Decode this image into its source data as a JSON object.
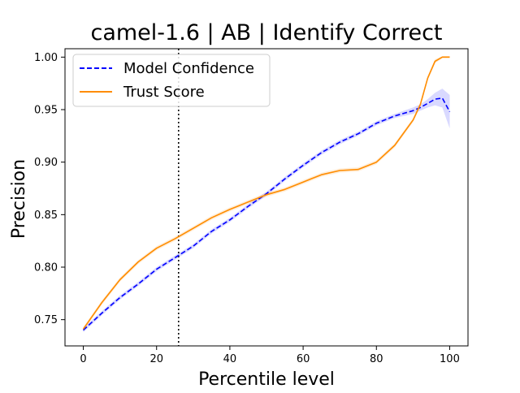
{
  "chart_data": {
    "type": "line",
    "title": "camel-1.6 | AB | Identify Correct",
    "xlabel": "Percentile level",
    "ylabel": "Precision",
    "xlim": [
      -5,
      105
    ],
    "ylim": [
      0.725,
      1.008
    ],
    "xticks": [
      0,
      20,
      40,
      60,
      80,
      100
    ],
    "xtick_labels": [
      "0",
      "20",
      "40",
      "60",
      "80",
      "100"
    ],
    "yticks": [
      0.75,
      0.8,
      0.85,
      0.9,
      0.95,
      1.0
    ],
    "ytick_labels": [
      "0.75",
      "0.80",
      "0.85",
      "0.90",
      "0.95",
      "1.00"
    ],
    "grid": false,
    "legend_position": "top-left",
    "vline": {
      "x": 26,
      "style": "dotted",
      "color": "#000000"
    },
    "series": [
      {
        "name": "Model Confidence",
        "color": "#0000ff",
        "style": "dashed",
        "band_color": "#0000ff",
        "x": [
          0,
          5,
          10,
          15,
          20,
          25,
          30,
          35,
          40,
          45,
          50,
          55,
          60,
          65,
          70,
          75,
          80,
          85,
          90,
          92,
          94,
          96,
          98,
          100
        ],
        "y": [
          0.74,
          0.756,
          0.771,
          0.784,
          0.798,
          0.809,
          0.82,
          0.834,
          0.845,
          0.858,
          0.87,
          0.884,
          0.897,
          0.909,
          0.919,
          0.927,
          0.937,
          0.944,
          0.949,
          0.952,
          0.956,
          0.96,
          0.961,
          0.948
        ],
        "band": [
          0.002,
          0.002,
          0.002,
          0.002,
          0.002,
          0.002,
          0.002,
          0.002,
          0.002,
          0.002,
          0.002,
          0.002,
          0.002,
          0.002,
          0.002,
          0.002,
          0.002,
          0.002,
          0.003,
          0.003,
          0.004,
          0.006,
          0.009,
          0.016
        ]
      },
      {
        "name": "Trust Score",
        "color": "#ff8c00",
        "style": "solid",
        "band_color": "#ff8c00",
        "x": [
          0,
          5,
          10,
          15,
          20,
          25,
          30,
          35,
          40,
          45,
          50,
          55,
          60,
          65,
          70,
          75,
          80,
          85,
          90,
          92,
          94,
          96,
          98,
          100
        ],
        "y": [
          0.741,
          0.766,
          0.788,
          0.805,
          0.818,
          0.827,
          0.837,
          0.847,
          0.855,
          0.862,
          0.869,
          0.874,
          0.881,
          0.888,
          0.892,
          0.893,
          0.9,
          0.916,
          0.94,
          0.955,
          0.98,
          0.996,
          1.0,
          1.0
        ],
        "band": [
          0.002,
          0.002,
          0.002,
          0.002,
          0.002,
          0.002,
          0.002,
          0.002,
          0.002,
          0.002,
          0.002,
          0.002,
          0.002,
          0.002,
          0.002,
          0.002,
          0.002,
          0.002,
          0.002,
          0.002,
          0.002,
          0.002,
          0.001,
          0.001
        ]
      }
    ]
  }
}
